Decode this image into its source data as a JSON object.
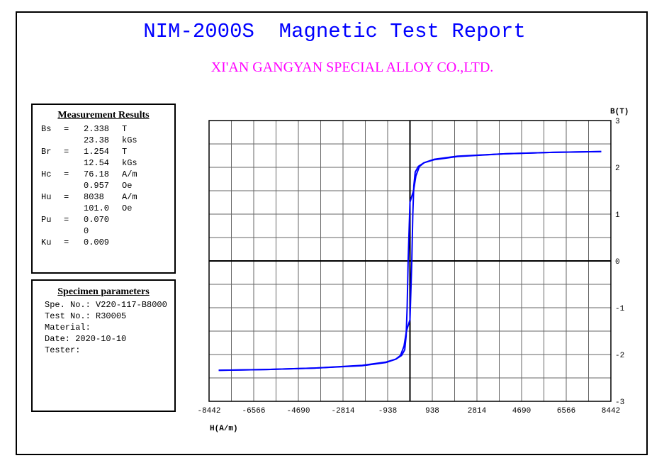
{
  "header": {
    "title": "NIM-2000S  Magnetic Test Report",
    "subtitle": "XI'AN GANGYAN SPECIAL ALLOY CO.,LTD."
  },
  "measurement": {
    "heading": "Measurement Results",
    "rows": [
      [
        "Bs",
        "=",
        "2.338",
        "T"
      ],
      [
        "",
        "",
        "23.38",
        "kGs"
      ],
      [
        "Br",
        "=",
        "1.254",
        "T"
      ],
      [
        "",
        "",
        "12.54",
        "kGs"
      ],
      [
        "Hc",
        "=",
        "76.18",
        "A/m"
      ],
      [
        "",
        "",
        "0.957",
        "Oe"
      ],
      [
        "Hu",
        "=",
        "8038",
        "A/m"
      ],
      [
        "",
        "",
        "101.0",
        "Oe"
      ],
      [
        "Pu",
        "=",
        "0.070",
        ""
      ],
      [
        "",
        "",
        "0",
        ""
      ],
      [
        "Ku",
        "=",
        "0.009",
        ""
      ]
    ]
  },
  "specimen": {
    "heading": "Specimen parameters",
    "lines": [
      "Spe. No.: V220-117-B8000",
      "Test No.: R30005",
      "Material:",
      "Date: 2020-10-10",
      "Tester:"
    ]
  },
  "chart_data": {
    "type": "line",
    "xlabel": "H(A/m)",
    "ylabel": "B(T)",
    "xlim": [
      -8442,
      8442
    ],
    "ylim": [
      -3,
      3
    ],
    "xticks": [
      -8442,
      -6566,
      -4690,
      -2814,
      -938,
      938,
      2814,
      4690,
      6566,
      8442
    ],
    "yticks": [
      3,
      2,
      1,
      0,
      -1,
      -2,
      -3
    ],
    "x_grid_step": 938,
    "y_grid_step": 0.5,
    "grid": true,
    "line_color": "#0000ff",
    "series": [
      {
        "branch": "descending",
        "points": [
          [
            8038,
            2.338
          ],
          [
            6000,
            2.32
          ],
          [
            4000,
            2.29
          ],
          [
            2000,
            2.24
          ],
          [
            1000,
            2.17
          ],
          [
            600,
            2.1
          ],
          [
            400,
            2.02
          ],
          [
            250,
            1.82
          ],
          [
            150,
            1.5
          ],
          [
            0,
            1.254
          ],
          [
            -76,
            0
          ],
          [
            -120,
            -1.0
          ],
          [
            -160,
            -1.6
          ],
          [
            -220,
            -1.9
          ],
          [
            -350,
            -2.02
          ],
          [
            -600,
            -2.1
          ],
          [
            -1000,
            -2.16
          ],
          [
            -2000,
            -2.23
          ],
          [
            -4000,
            -2.29
          ],
          [
            -6000,
            -2.32
          ],
          [
            -8038,
            -2.338
          ]
        ]
      },
      {
        "branch": "ascending",
        "points": [
          [
            -8038,
            -2.338
          ],
          [
            -6000,
            -2.32
          ],
          [
            -4000,
            -2.29
          ],
          [
            -2000,
            -2.24
          ],
          [
            -1000,
            -2.17
          ],
          [
            -600,
            -2.1
          ],
          [
            -400,
            -2.02
          ],
          [
            -250,
            -1.82
          ],
          [
            -150,
            -1.5
          ],
          [
            0,
            -1.254
          ],
          [
            76,
            0
          ],
          [
            120,
            1.0
          ],
          [
            160,
            1.6
          ],
          [
            220,
            1.9
          ],
          [
            350,
            2.02
          ],
          [
            600,
            2.1
          ],
          [
            1000,
            2.16
          ],
          [
            2000,
            2.23
          ],
          [
            4000,
            2.29
          ],
          [
            6000,
            2.32
          ],
          [
            8038,
            2.338
          ]
        ]
      }
    ]
  }
}
